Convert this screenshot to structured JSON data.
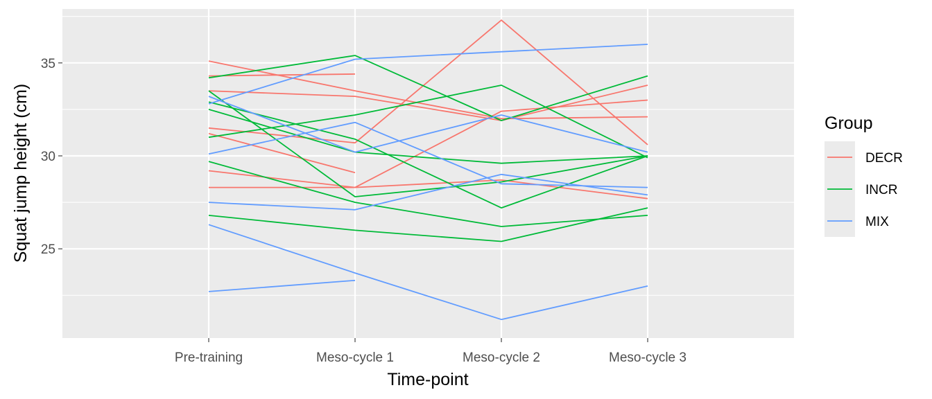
{
  "chart_data": {
    "type": "line",
    "title": "",
    "xlabel": "Time-point",
    "ylabel": "Squat jump height (cm)",
    "categories": [
      "Pre-training",
      "Meso-cycle 1",
      "Meso-cycle 2",
      "Meso-cycle 3"
    ],
    "ylim": [
      20.2,
      37.9
    ],
    "yticks": [
      25,
      30,
      35
    ],
    "grid": true,
    "legend": {
      "title": "Group",
      "position": "right"
    },
    "groups": [
      {
        "name": "DECR",
        "color": "#F8766D"
      },
      {
        "name": "INCR",
        "color": "#00BA38"
      },
      {
        "name": "MIX",
        "color": "#619CFF"
      }
    ],
    "series": [
      {
        "group": "DECR",
        "values": [
          35.1,
          33.5,
          32.0,
          32.1
        ]
      },
      {
        "group": "DECR",
        "values": [
          34.3,
          34.4,
          null,
          null
        ]
      },
      {
        "group": "DECR",
        "values": [
          33.5,
          33.2,
          31.9,
          33.8
        ]
      },
      {
        "group": "DECR",
        "values": [
          31.5,
          30.7,
          37.3,
          30.6
        ]
      },
      {
        "group": "DECR",
        "values": [
          31.2,
          29.1,
          null,
          null
        ]
      },
      {
        "group": "DECR",
        "values": [
          29.2,
          28.3,
          32.4,
          33.0
        ]
      },
      {
        "group": "DECR",
        "values": [
          28.3,
          28.3,
          28.7,
          27.7
        ]
      },
      {
        "group": "INCR",
        "values": [
          34.2,
          35.4,
          31.9,
          34.3
        ]
      },
      {
        "group": "INCR",
        "values": [
          33.5,
          27.8,
          28.6,
          30.0
        ]
      },
      {
        "group": "INCR",
        "values": [
          32.9,
          30.9,
          27.2,
          30.0
        ]
      },
      {
        "group": "INCR",
        "values": [
          32.5,
          30.2,
          29.6,
          30.0
        ]
      },
      {
        "group": "INCR",
        "values": [
          31.0,
          32.2,
          33.8,
          29.9
        ]
      },
      {
        "group": "INCR",
        "values": [
          29.7,
          27.5,
          26.2,
          26.8
        ]
      },
      {
        "group": "INCR",
        "values": [
          26.8,
          26.0,
          25.4,
          27.2
        ]
      },
      {
        "group": "MIX",
        "values": [
          33.2,
          30.2,
          32.2,
          30.2
        ]
      },
      {
        "group": "MIX",
        "values": [
          32.8,
          35.2,
          35.6,
          36.0
        ]
      },
      {
        "group": "MIX",
        "values": [
          30.1,
          31.8,
          28.5,
          28.3
        ]
      },
      {
        "group": "MIX",
        "values": [
          27.5,
          27.1,
          29.0,
          27.9
        ]
      },
      {
        "group": "MIX",
        "values": [
          26.3,
          23.7,
          21.2,
          23.0
        ]
      },
      {
        "group": "MIX",
        "values": [
          22.7,
          23.3,
          null,
          null
        ]
      }
    ]
  }
}
